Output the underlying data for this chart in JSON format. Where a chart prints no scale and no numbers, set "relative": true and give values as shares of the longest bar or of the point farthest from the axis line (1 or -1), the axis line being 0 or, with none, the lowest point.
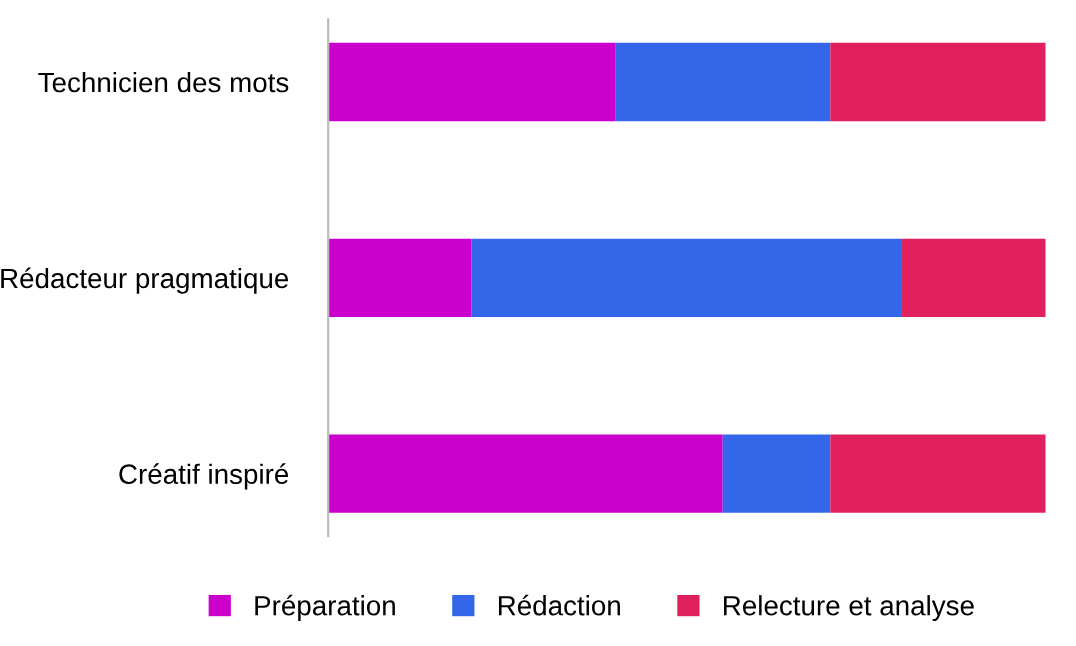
{
  "chart_data": {
    "type": "bar",
    "orientation": "horizontal",
    "stacked": true,
    "relative": true,
    "legend": "bottom",
    "grid": false,
    "categories": [
      "Technicien des mots",
      "Rédacteur pragmatique",
      "Créatif inspiré"
    ],
    "series": [
      {
        "name": "Préparation",
        "color": "#cc00cc",
        "values": [
          0.4,
          0.2,
          0.55
        ]
      },
      {
        "name": "Rédaction",
        "color": "#3366e8",
        "values": [
          0.3,
          0.6,
          0.15
        ]
      },
      {
        "name": "Relecture et analyse",
        "color": "#e0205c",
        "values": [
          0.3,
          0.2,
          0.3
        ]
      }
    ]
  }
}
